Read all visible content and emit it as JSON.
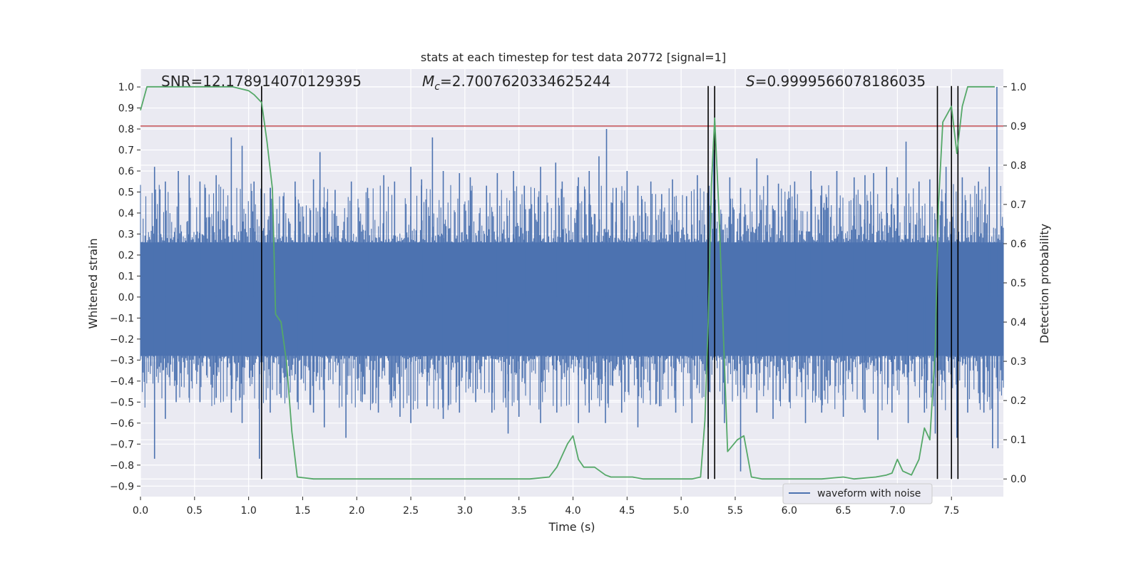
{
  "chart_data": {
    "type": "line",
    "title": "stats at each timestep for test data 20772 [signal=1]",
    "xlabel": "Time (s)",
    "ylabel": "Whitened strain",
    "y2label": "Detection probability",
    "xlim": [
      0.0,
      7.98
    ],
    "ylim": [
      -0.95,
      1.085
    ],
    "y2lim": [
      -0.045,
      1.045
    ],
    "xticks": [
      "0.0",
      "0.5",
      "1.0",
      "1.5",
      "2.0",
      "2.5",
      "3.0",
      "3.5",
      "4.0",
      "4.5",
      "5.0",
      "5.5",
      "6.0",
      "6.5",
      "7.0",
      "7.5"
    ],
    "yticks": [
      "1.0",
      "0.9",
      "0.8",
      "0.7",
      "0.6",
      "0.5",
      "0.4",
      "0.3",
      "0.2",
      "0.1",
      "0.0",
      "−0.1",
      "−0.2",
      "−0.3",
      "−0.4",
      "−0.5",
      "−0.6",
      "−0.7",
      "−0.8",
      "−0.9"
    ],
    "y2ticks": [
      "1.0",
      "0.9",
      "0.8",
      "0.7",
      "0.6",
      "0.5",
      "0.4",
      "0.3",
      "0.2",
      "0.1",
      "0.0"
    ],
    "grid": true,
    "legend": {
      "position": "lower-right",
      "entries": [
        "waveform with noise"
      ]
    },
    "annotations": {
      "snr": "SNR=12.178914070129395",
      "mc_symbol": "M",
      "mc_subscript": "c",
      "mc_value": "=2.7007620334625244",
      "s_symbol": "S",
      "s_value": "=0.9999566078186035"
    },
    "threshold_line": {
      "y2": 0.9,
      "color": "#c44e52"
    },
    "vertical_lines": [
      1.12,
      5.25,
      5.31,
      7.37,
      7.5,
      7.56
    ],
    "series": [
      {
        "name": "waveform with noise",
        "color": "#4c72b0",
        "envelope_pos": 0.26,
        "envelope_neg": -0.28,
        "spikes": [
          [
            0.13,
            0.62
          ],
          [
            0.23,
            0.55
          ],
          [
            0.35,
            0.6
          ],
          [
            0.45,
            0.58
          ],
          [
            0.55,
            0.55
          ],
          [
            0.6,
            0.52
          ],
          [
            0.7,
            0.58
          ],
          [
            0.84,
            0.76
          ],
          [
            0.94,
            0.72
          ],
          [
            1.05,
            0.55
          ],
          [
            1.2,
            0.52
          ],
          [
            1.32,
            0.48
          ],
          [
            1.43,
            0.55
          ],
          [
            1.6,
            0.56
          ],
          [
            1.66,
            0.69
          ],
          [
            1.8,
            0.51
          ],
          [
            1.95,
            0.55
          ],
          [
            2.1,
            0.52
          ],
          [
            2.25,
            0.58
          ],
          [
            2.35,
            0.55
          ],
          [
            2.5,
            0.62
          ],
          [
            2.6,
            0.56
          ],
          [
            2.7,
            0.76
          ],
          [
            2.8,
            0.6
          ],
          [
            2.95,
            0.59
          ],
          [
            3.05,
            0.57
          ],
          [
            3.2,
            0.53
          ],
          [
            3.3,
            0.59
          ],
          [
            3.45,
            0.6
          ],
          [
            3.55,
            0.53
          ],
          [
            3.7,
            0.62
          ],
          [
            3.84,
            0.64
          ],
          [
            3.9,
            0.55
          ],
          [
            4.05,
            0.57
          ],
          [
            4.15,
            0.6
          ],
          [
            4.24,
            0.67
          ],
          [
            4.31,
            0.8
          ],
          [
            4.4,
            0.52
          ],
          [
            4.5,
            0.6
          ],
          [
            4.6,
            0.53
          ],
          [
            4.72,
            0.55
          ],
          [
            4.82,
            0.49
          ],
          [
            4.92,
            0.56
          ],
          [
            5.05,
            0.48
          ],
          [
            5.15,
            0.58
          ],
          [
            5.3,
            0.7
          ],
          [
            5.45,
            0.57
          ],
          [
            5.55,
            0.52
          ],
          [
            5.7,
            0.66
          ],
          [
            5.8,
            0.58
          ],
          [
            5.9,
            0.54
          ],
          [
            6.05,
            0.55
          ],
          [
            6.2,
            0.6
          ],
          [
            6.3,
            0.53
          ],
          [
            6.44,
            0.6
          ],
          [
            6.6,
            0.57
          ],
          [
            6.7,
            0.58
          ],
          [
            6.78,
            0.59
          ],
          [
            6.9,
            0.62
          ],
          [
            7.0,
            0.57
          ],
          [
            7.08,
            0.74
          ],
          [
            7.2,
            0.55
          ],
          [
            7.3,
            0.56
          ],
          [
            7.45,
            0.62
          ],
          [
            7.6,
            0.57
          ],
          [
            7.75,
            0.55
          ],
          [
            7.85,
            0.62
          ],
          [
            7.92,
            1.0
          ],
          [
            0.13,
            -0.77
          ],
          [
            0.23,
            -0.58
          ],
          [
            0.33,
            -0.5
          ],
          [
            0.45,
            -0.48
          ],
          [
            0.55,
            -0.5
          ],
          [
            0.7,
            -0.48
          ],
          [
            0.84,
            -0.55
          ],
          [
            0.94,
            -0.6
          ],
          [
            1.1,
            -0.77
          ],
          [
            1.2,
            -0.55
          ],
          [
            1.3,
            -0.48
          ],
          [
            1.45,
            -0.5
          ],
          [
            1.6,
            -0.55
          ],
          [
            1.7,
            -0.62
          ],
          [
            1.9,
            -0.67
          ],
          [
            2.05,
            -0.5
          ],
          [
            2.2,
            -0.55
          ],
          [
            2.4,
            -0.57
          ],
          [
            2.5,
            -0.6
          ],
          [
            2.65,
            -0.52
          ],
          [
            2.8,
            -0.58
          ],
          [
            2.95,
            -0.55
          ],
          [
            3.1,
            -0.5
          ],
          [
            3.25,
            -0.55
          ],
          [
            3.4,
            -0.65
          ],
          [
            3.5,
            -0.57
          ],
          [
            3.7,
            -0.6
          ],
          [
            3.85,
            -0.55
          ],
          [
            4.05,
            -0.6
          ],
          [
            4.15,
            -0.55
          ],
          [
            4.3,
            -0.6
          ],
          [
            4.45,
            -0.55
          ],
          [
            4.6,
            -0.62
          ],
          [
            4.8,
            -0.52
          ],
          [
            4.95,
            -0.55
          ],
          [
            5.1,
            -0.6
          ],
          [
            5.25,
            -0.62
          ],
          [
            5.4,
            -0.6
          ],
          [
            5.55,
            -0.83
          ],
          [
            5.7,
            -0.55
          ],
          [
            5.85,
            -0.58
          ],
          [
            6.0,
            -0.5
          ],
          [
            6.15,
            -0.6
          ],
          [
            6.3,
            -0.55
          ],
          [
            6.5,
            -0.57
          ],
          [
            6.7,
            -0.55
          ],
          [
            6.82,
            -0.68
          ],
          [
            6.95,
            -0.55
          ],
          [
            7.1,
            -0.6
          ],
          [
            7.25,
            -0.55
          ],
          [
            7.35,
            -0.65
          ],
          [
            7.55,
            -0.67
          ],
          [
            7.65,
            -0.55
          ],
          [
            7.8,
            -0.55
          ],
          [
            7.88,
            -0.72
          ],
          [
            7.93,
            -0.72
          ]
        ]
      },
      {
        "name": "detection probability",
        "axis": "y2",
        "color": "#55a868",
        "x": [
          0.0,
          0.06,
          0.2,
          0.5,
          0.85,
          1.0,
          1.05,
          1.12,
          1.17,
          1.22,
          1.25,
          1.3,
          1.35,
          1.4,
          1.45,
          1.6,
          2.0,
          2.5,
          3.0,
          3.4,
          3.6,
          3.78,
          3.85,
          3.95,
          4.0,
          4.05,
          4.1,
          4.2,
          4.3,
          4.35,
          4.45,
          4.55,
          4.65,
          4.8,
          5.0,
          5.1,
          5.18,
          5.22,
          5.25,
          5.28,
          5.31,
          5.35,
          5.43,
          5.52,
          5.58,
          5.65,
          5.75,
          6.0,
          6.3,
          6.5,
          6.6,
          6.8,
          6.9,
          6.95,
          7.0,
          7.05,
          7.13,
          7.2,
          7.25,
          7.3,
          7.35,
          7.38,
          7.42,
          7.46,
          7.5,
          7.55,
          7.6,
          7.65,
          7.75,
          7.9
        ],
        "values": [
          0.94,
          1.0,
          1.0,
          1.0,
          1.0,
          0.99,
          0.98,
          0.96,
          0.86,
          0.74,
          0.42,
          0.4,
          0.3,
          0.12,
          0.005,
          0.0,
          0.0,
          0.0,
          0.0,
          0.0,
          0.0,
          0.005,
          0.03,
          0.09,
          0.11,
          0.05,
          0.03,
          0.03,
          0.01,
          0.005,
          0.005,
          0.005,
          0.0,
          0.0,
          0.0,
          0.0,
          0.005,
          0.15,
          0.4,
          0.75,
          0.92,
          0.68,
          0.07,
          0.1,
          0.11,
          0.005,
          0.0,
          0.0,
          0.0,
          0.005,
          0.0,
          0.005,
          0.01,
          0.015,
          0.05,
          0.02,
          0.01,
          0.05,
          0.13,
          0.1,
          0.33,
          0.7,
          0.91,
          0.93,
          0.95,
          0.83,
          0.95,
          1.0,
          1.0,
          1.0
        ]
      }
    ]
  }
}
